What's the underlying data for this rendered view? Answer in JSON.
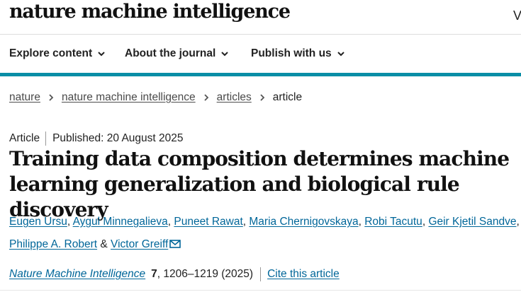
{
  "header": {
    "logo_text": "nature machine intelligence",
    "right_cut_text": "V"
  },
  "nav": {
    "items": [
      {
        "label": "Explore content"
      },
      {
        "label": "About the journal"
      },
      {
        "label": "Publish with us"
      }
    ]
  },
  "breadcrumb": {
    "items": [
      "nature",
      "nature machine intelligence",
      "articles"
    ],
    "current": "article"
  },
  "article": {
    "type": "Article",
    "published": "Published: 20 August 2025",
    "title": "Training data composition determines machine learning generalization and biological rule discovery"
  },
  "authors": [
    "Eugen Ursu",
    "Aygul Minnegalieva",
    "Puneet Rawat",
    "Maria Chernigovskaya",
    "Robi Tacutu",
    "Geir Kjetil Sandve",
    "Philippe A. Robert",
    "Victor Greiff"
  ],
  "author_separators": {
    "comma": ",",
    "and": "&"
  },
  "citation": {
    "journal": "Nature Machine Intelligence",
    "volume": "7",
    "pages_year": ", 1206–1219 (2025)",
    "cite_label": "Cite this article"
  },
  "colors": {
    "accent_bar": "#0a8ea6",
    "link": "#006699"
  }
}
